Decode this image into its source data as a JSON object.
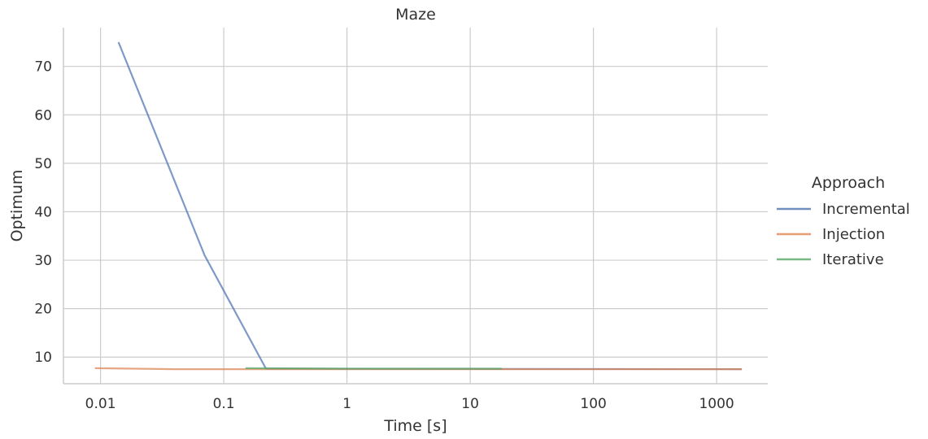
{
  "chart_data": {
    "type": "line",
    "title": "Maze",
    "xlabel": "Time [s]",
    "ylabel": "Optimum",
    "xscale": "log",
    "xlim": [
      0.005,
      2600
    ],
    "ylim": [
      4.5,
      78
    ],
    "xticks": [
      {
        "value": 0.01,
        "label": "0.01"
      },
      {
        "value": 0.1,
        "label": "0.1"
      },
      {
        "value": 1,
        "label": "1"
      },
      {
        "value": 10,
        "label": "10"
      },
      {
        "value": 100,
        "label": "100"
      },
      {
        "value": 1000,
        "label": "1000"
      }
    ],
    "yticks": [
      {
        "value": 10,
        "label": "10"
      },
      {
        "value": 20,
        "label": "20"
      },
      {
        "value": 30,
        "label": "30"
      },
      {
        "value": 40,
        "label": "40"
      },
      {
        "value": 50,
        "label": "50"
      },
      {
        "value": 60,
        "label": "60"
      },
      {
        "value": 70,
        "label": "70"
      }
    ],
    "grid": true,
    "legend": {
      "title": "Approach",
      "placement": "right"
    },
    "series": [
      {
        "name": "Incremental",
        "color": "#4c72b0",
        "x": [
          0.014,
          0.07,
          0.22,
          1600
        ],
        "y": [
          75,
          31,
          7.6,
          7.5
        ]
      },
      {
        "name": "Injection",
        "color": "#dd8452",
        "x": [
          0.009,
          0.04,
          0.15,
          1,
          10,
          100,
          1600
        ],
        "y": [
          7.7,
          7.5,
          7.5,
          7.5,
          7.5,
          7.5,
          7.5
        ]
      },
      {
        "name": "Iterative",
        "color": "#55a868",
        "x": [
          0.15,
          1,
          18
        ],
        "y": [
          7.7,
          7.6,
          7.6
        ]
      }
    ]
  }
}
